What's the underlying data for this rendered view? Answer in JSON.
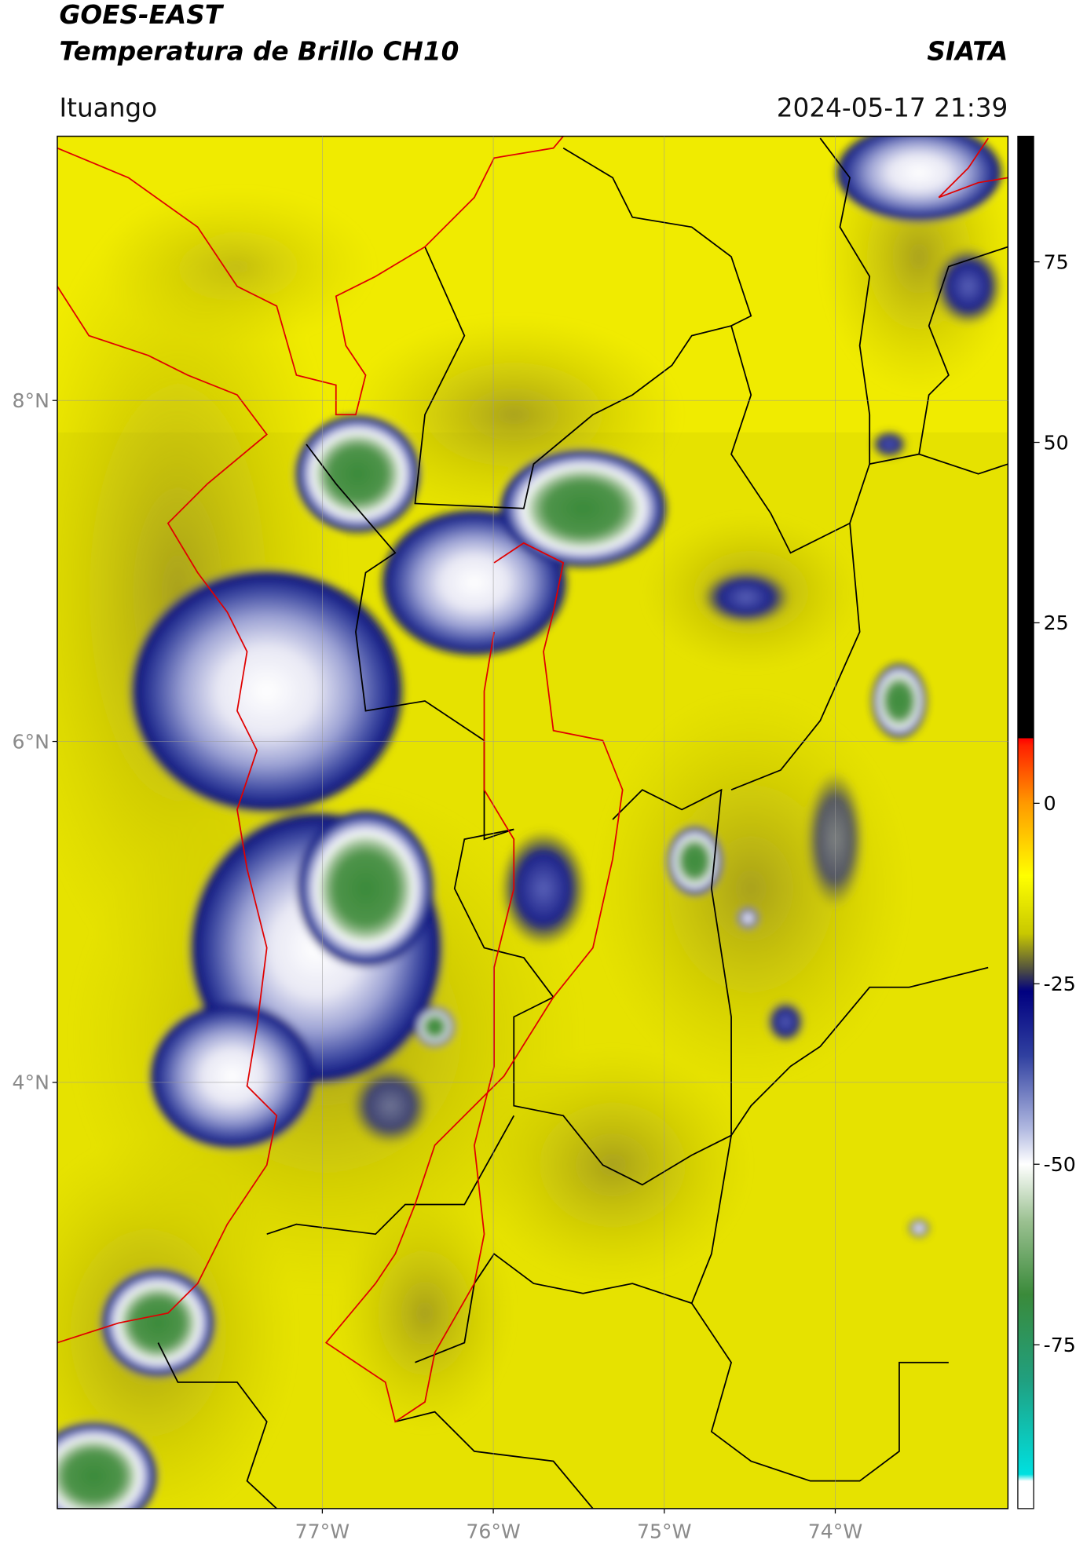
{
  "header": {
    "title": "GOES-EAST",
    "subtitle": "Temperatura de Brillo CH10",
    "source": "SIATA",
    "location": "Ituango",
    "timestamp": "2024-05-17 21:39"
  },
  "map": {
    "xlim": [
      -78.55,
      -72.99
    ],
    "ylim": [
      1.5,
      9.55
    ],
    "xticks": [
      {
        "value": -77,
        "label": "77°W"
      },
      {
        "value": -76,
        "label": "76°W"
      },
      {
        "value": -75,
        "label": "75°W"
      },
      {
        "value": -74,
        "label": "74°W"
      }
    ],
    "yticks": [
      {
        "value": 8,
        "label": "8°N"
      },
      {
        "value": 6,
        "label": "6°N"
      },
      {
        "value": 4,
        "label": "4°N"
      }
    ],
    "grid": true
  },
  "colorbar": {
    "lim": [
      -97.7,
      92.4
    ],
    "ticks": [
      75,
      50,
      25,
      0,
      -25,
      -50,
      -75
    ]
  }
}
